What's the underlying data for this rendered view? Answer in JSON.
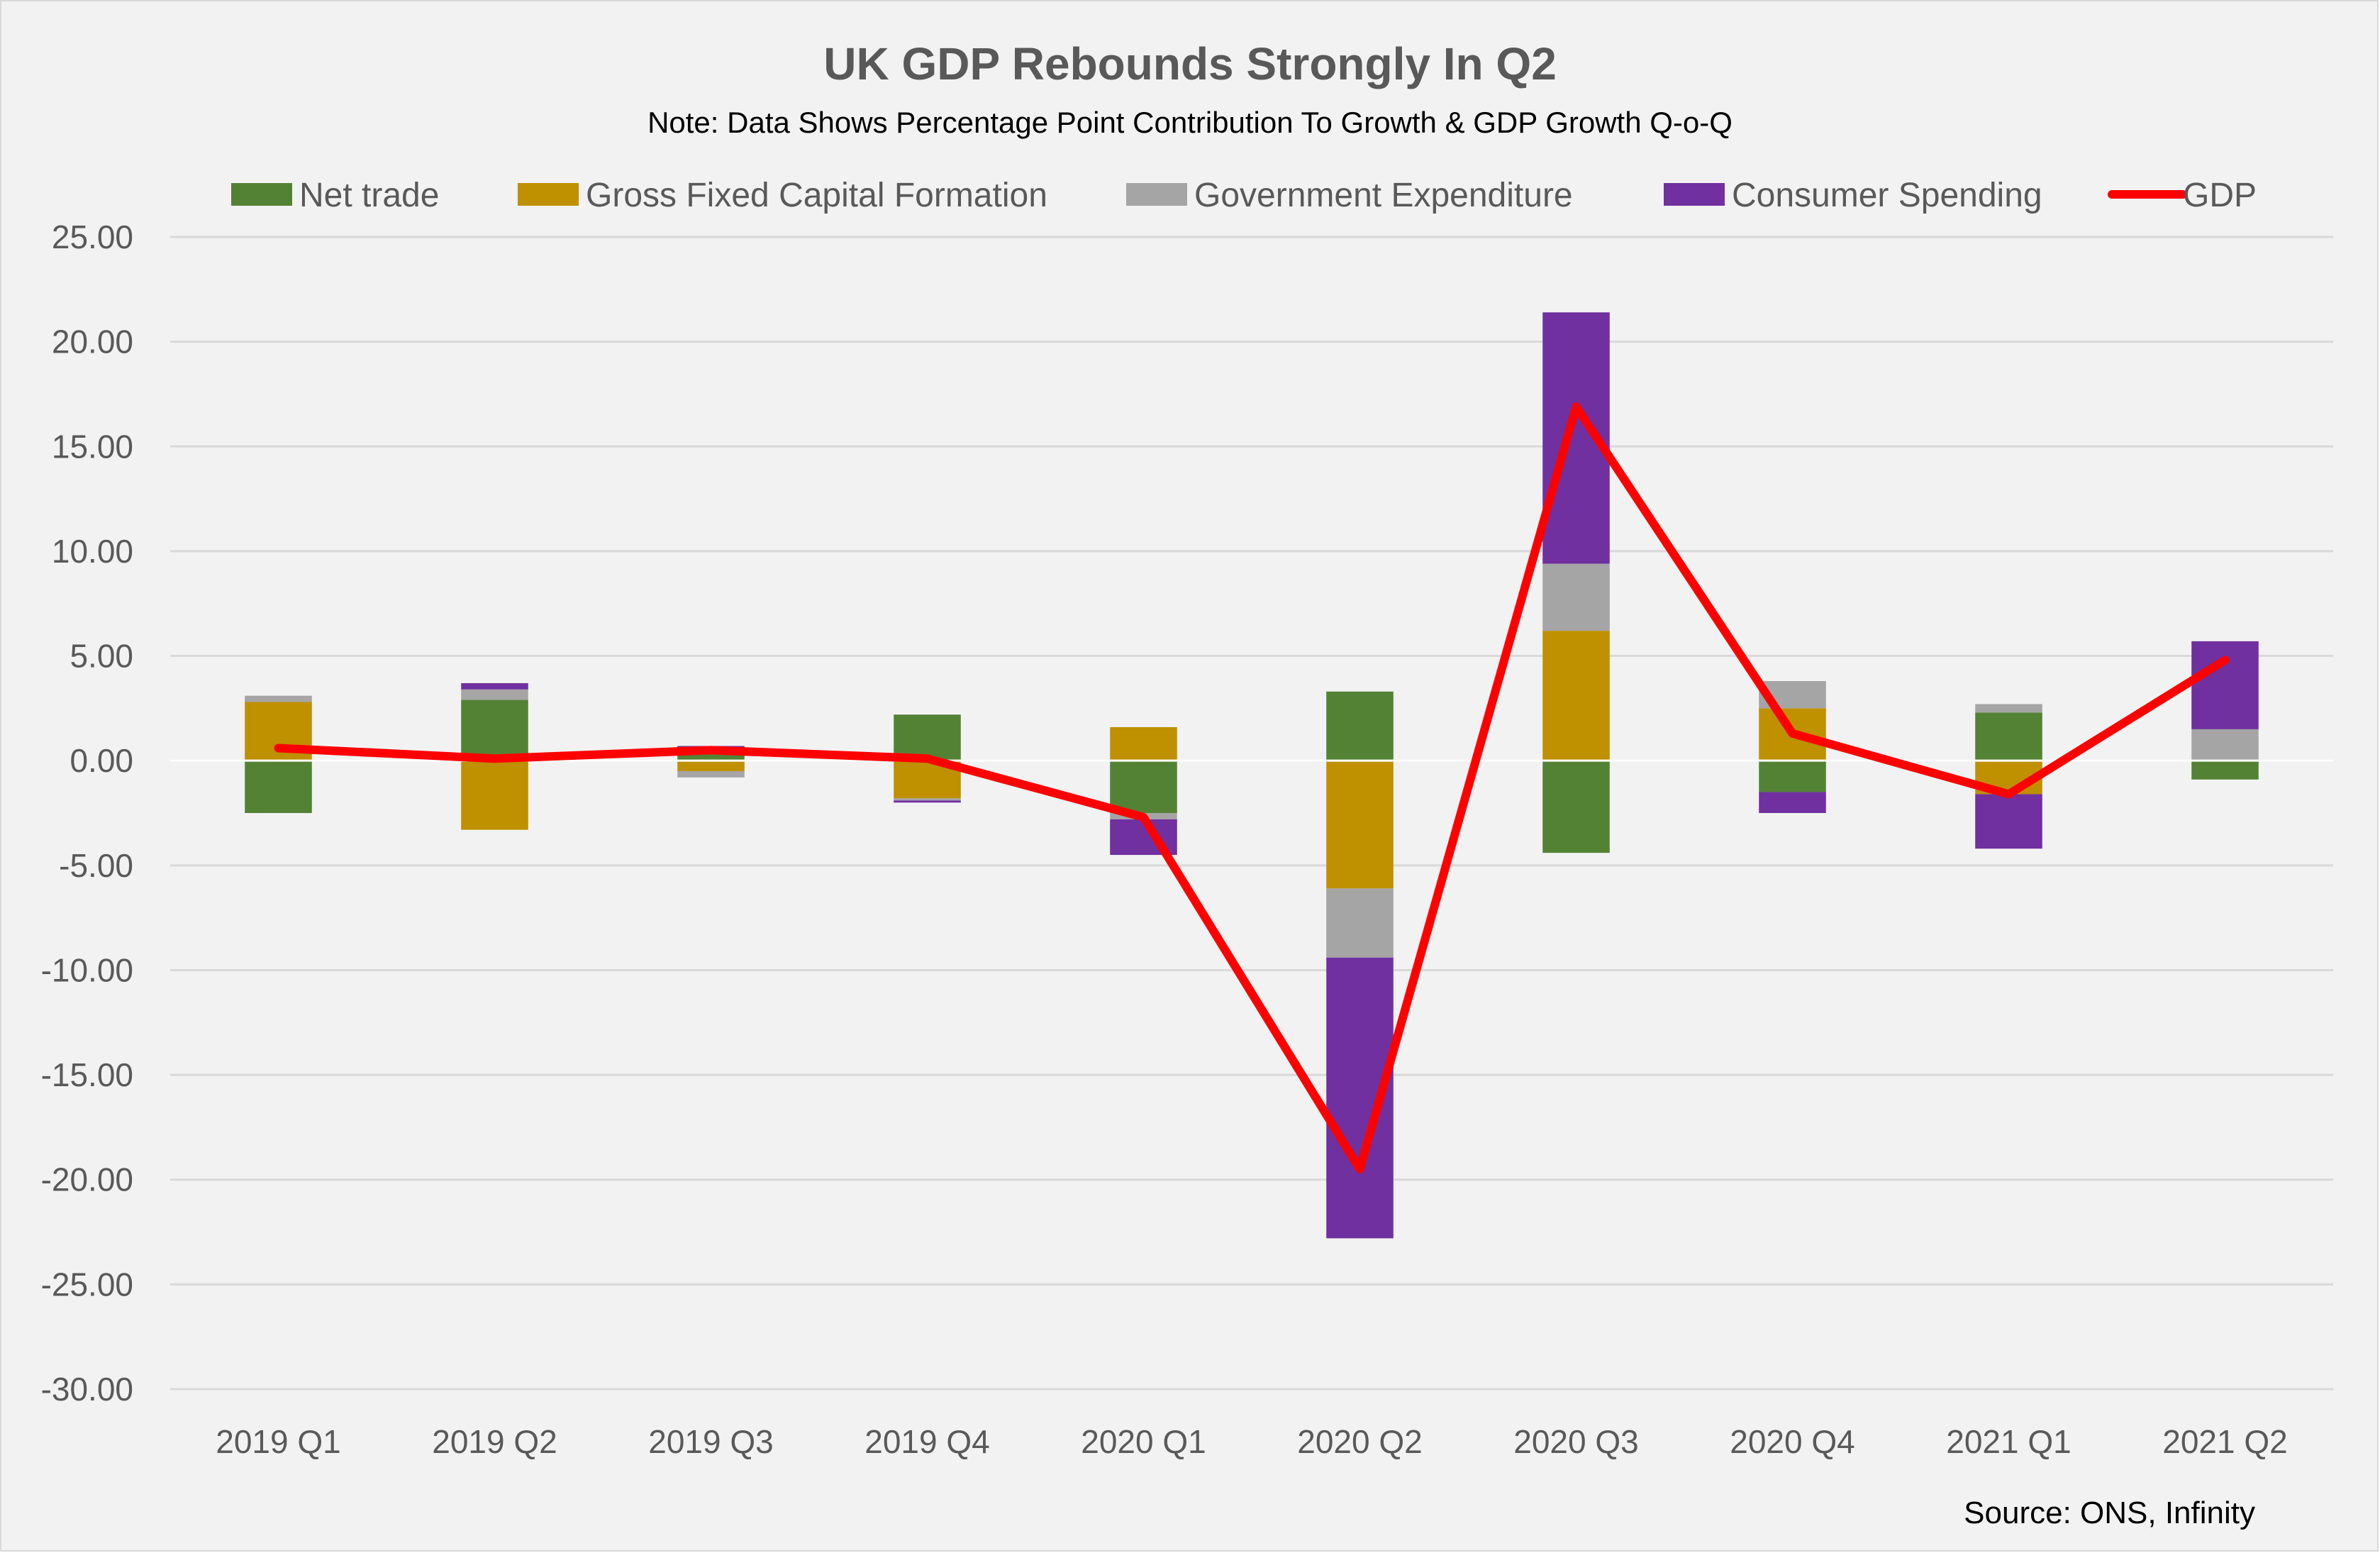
{
  "chart_data": {
    "type": "bar",
    "stacked": true,
    "title": "UK GDP Rebounds Strongly In Q2",
    "subtitle": "Note: Data Shows Percentage Point Contribution To Growth & GDP Growth Q-o-Q",
    "source": "Source: ONS, Infinity",
    "xlabel": "",
    "ylabel": "",
    "ylim": [
      -30,
      25
    ],
    "yticks": [
      25,
      20,
      15,
      10,
      5,
      0,
      -5,
      -10,
      -15,
      -20,
      -25,
      -30
    ],
    "ytick_labels": [
      "25.00",
      "20.00",
      "15.00",
      "10.00",
      "5.00",
      "0.00",
      "-5.00",
      "-10.00",
      "-15.00",
      "-20.00",
      "-25.00",
      "-30.00"
    ],
    "grid": true,
    "legend_position": "top",
    "categories": [
      "2019 Q1",
      "2019 Q2",
      "2019 Q3",
      "2019 Q4",
      "2020 Q1",
      "2020 Q2",
      "2020 Q3",
      "2020 Q4",
      "2021 Q1",
      "2021 Q2"
    ],
    "series": [
      {
        "name": "Net trade",
        "kind": "bar",
        "color": "#548235",
        "values": [
          -2.5,
          2.9,
          0.5,
          2.2,
          -2.5,
          3.3,
          -4.4,
          -1.5,
          2.3,
          -0.9
        ]
      },
      {
        "name": "Gross Fixed Capital Formation",
        "kind": "bar",
        "color": "#bf9000",
        "values": [
          2.8,
          -3.3,
          -0.5,
          -1.8,
          1.6,
          -6.1,
          6.2,
          2.5,
          -1.6,
          0.0
        ]
      },
      {
        "name": "Government Expenditure",
        "kind": "bar",
        "color": "#a5a5a5",
        "values": [
          0.3,
          0.5,
          -0.3,
          -0.1,
          -0.3,
          -3.3,
          3.2,
          1.3,
          0.4,
          1.5
        ]
      },
      {
        "name": "Consumer Spending",
        "kind": "bar",
        "color": "#7030a0",
        "values": [
          0.0,
          0.3,
          0.2,
          -0.1,
          -1.7,
          -13.4,
          12.0,
          -1.0,
          -2.6,
          4.2
        ]
      },
      {
        "name": "GDP",
        "kind": "line",
        "color": "#ff0000",
        "values": [
          0.6,
          0.1,
          0.5,
          0.1,
          -2.7,
          -19.5,
          16.9,
          1.3,
          -1.6,
          4.8
        ]
      }
    ]
  }
}
